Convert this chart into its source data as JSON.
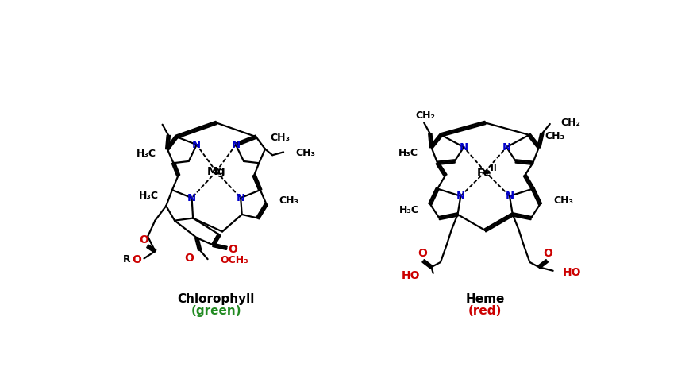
{
  "background_color": "#ffffff",
  "chlorophyll_label": "Chlorophyll",
  "chlorophyll_sublabel": "(green)",
  "heme_label": "Heme",
  "heme_sublabel": "(red)",
  "label_color": "#000000",
  "sublabel_color_chlorophyll": "#228B22",
  "sublabel_color_heme": "#cc0000",
  "N_color": "#0000cc",
  "red_color": "#cc0000",
  "black_color": "#000000",
  "lw": 1.6
}
